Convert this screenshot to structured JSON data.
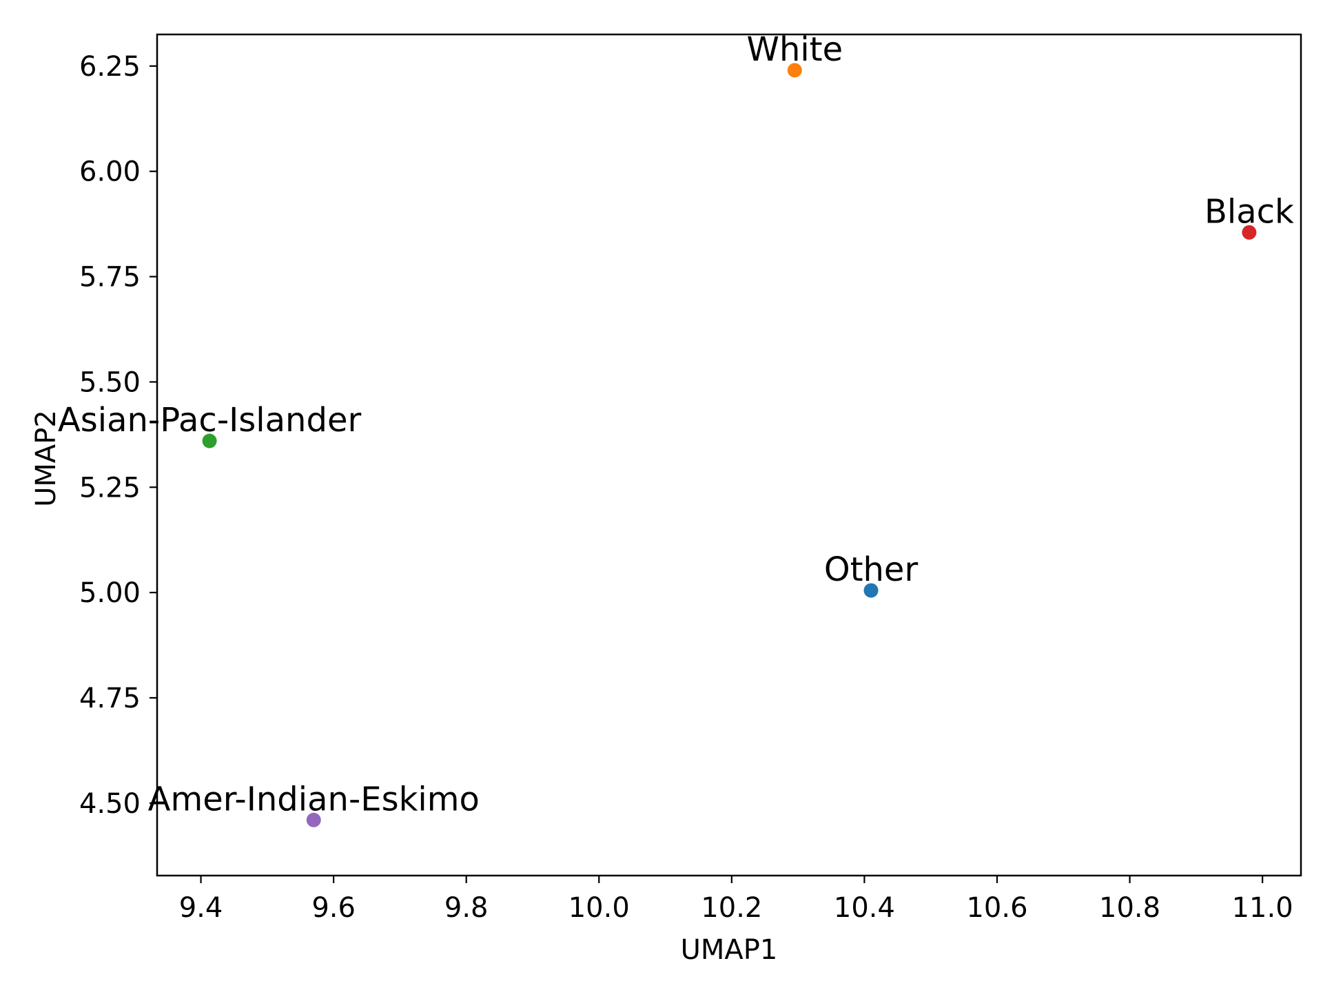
{
  "chart_data": {
    "type": "scatter",
    "title": "",
    "xlabel": "UMAP1",
    "ylabel": "UMAP2",
    "xlim": [
      9.334,
      11.058
    ],
    "ylim": [
      4.328,
      6.325
    ],
    "xticks": [
      9.4,
      9.6,
      9.8,
      10.0,
      10.2,
      10.4,
      10.6,
      10.8,
      11.0
    ],
    "xtick_labels": [
      "9.4",
      "9.6",
      "9.8",
      "10.0",
      "10.2",
      "10.4",
      "10.6",
      "10.8",
      "11.0"
    ],
    "yticks": [
      4.5,
      4.75,
      5.0,
      5.25,
      5.5,
      5.75,
      6.0,
      6.25
    ],
    "ytick_labels": [
      "4.50",
      "4.75",
      "5.00",
      "5.25",
      "5.50",
      "5.75",
      "6.00",
      "6.25"
    ],
    "grid": false,
    "legend": "none",
    "points": [
      {
        "label": "Other",
        "x": 10.41,
        "y": 5.005,
        "color": "#1f77b4"
      },
      {
        "label": "White",
        "x": 10.295,
        "y": 6.24,
        "color": "#ff7f0e"
      },
      {
        "label": "Asian-Pac-Islander",
        "x": 9.413,
        "y": 5.36,
        "color": "#2ca02c"
      },
      {
        "label": "Black",
        "x": 10.98,
        "y": 5.855,
        "color": "#d62728"
      },
      {
        "label": "Amer-Indian-Eskimo",
        "x": 9.57,
        "y": 4.46,
        "color": "#9467bd"
      }
    ]
  }
}
